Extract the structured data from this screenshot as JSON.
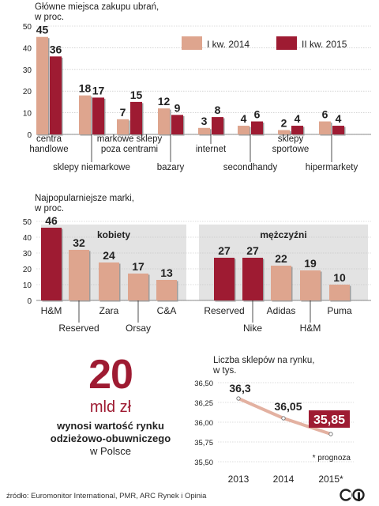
{
  "chart_data": [
    {
      "type": "bar",
      "title": "Główne miejsca zakupu ubrań,",
      "subtitle": "w proc.",
      "categories": [
        "centra handlowe",
        "sklepy niemarkowe",
        "markowe sklepy poza centrami",
        "bazary",
        "internet",
        "secondhandy",
        "sklepy sportowe",
        "hipermarkety"
      ],
      "category_lines": [
        [
          "centra",
          "handlowe"
        ],
        [
          "sklepy niemarkowe"
        ],
        [
          "markowe sklepy",
          "poza centrami"
        ],
        [
          "bazary"
        ],
        [
          "internet"
        ],
        [
          "secondhandy"
        ],
        [
          "sklepy",
          "sportowe"
        ],
        [
          "hipermarkety"
        ]
      ],
      "series": [
        {
          "name": "I kw. 2014",
          "values": [
            45,
            18,
            7,
            12,
            3,
            4,
            2,
            6
          ],
          "color": "#dea58e"
        },
        {
          "name": "II kw. 2015",
          "values": [
            36,
            17,
            15,
            9,
            8,
            6,
            4,
            4
          ],
          "color": "#9e1b32"
        }
      ],
      "ylim": [
        0,
        50
      ],
      "yticks": [
        "0",
        "10",
        "20",
        "30",
        "40",
        "50"
      ],
      "grid": true,
      "legend": "top-right"
    },
    {
      "type": "bar",
      "title": "Najpopularniejsze marki,",
      "subtitle": "w proc.",
      "panel_label": "kobiety",
      "categories": [
        "H&M",
        "Reserved",
        "Zara",
        "Orsay",
        "C&A"
      ],
      "values": [
        46,
        32,
        24,
        17,
        13
      ],
      "highlight_index": 0,
      "ylim": [
        0,
        50
      ],
      "yticks": [
        "0",
        "10",
        "20",
        "30",
        "40",
        "50"
      ]
    },
    {
      "type": "bar",
      "panel_label": "mężczyźni",
      "categories": [
        "Reserved",
        "Nike",
        "Adidas",
        "H&M",
        "Puma"
      ],
      "values": [
        27,
        27,
        22,
        19,
        10
      ],
      "highlight_indices": [
        0,
        1
      ]
    },
    {
      "type": "line",
      "title": "Liczba sklepów na rynku,",
      "subtitle": "w tys.",
      "x": [
        "2013",
        "2014",
        "2015*"
      ],
      "y": [
        36.3,
        36.05,
        35.85
      ],
      "value_labels": [
        "36,3",
        "36,05",
        "35,85"
      ],
      "ylim": [
        35.5,
        36.5
      ],
      "yticks": [
        "35,50",
        "35,75",
        "36,00",
        "36,25",
        "36,50"
      ],
      "annotation": "* prognoza",
      "grid": true
    }
  ],
  "stat": {
    "value": "20",
    "unit": "mld zł",
    "description_lines": [
      "wynosi wartość rynku",
      "odzieżowo-obuwniczego"
    ],
    "place": "w Polsce"
  },
  "source": "źródło: Euromonitor International, PMR, ARC Rynek i Opinia",
  "logo": "PAP",
  "colors": {
    "light": "#dea58e",
    "dark": "#9e1b32",
    "panel": "#e3e3e3",
    "grid": "#bbbbbb"
  }
}
